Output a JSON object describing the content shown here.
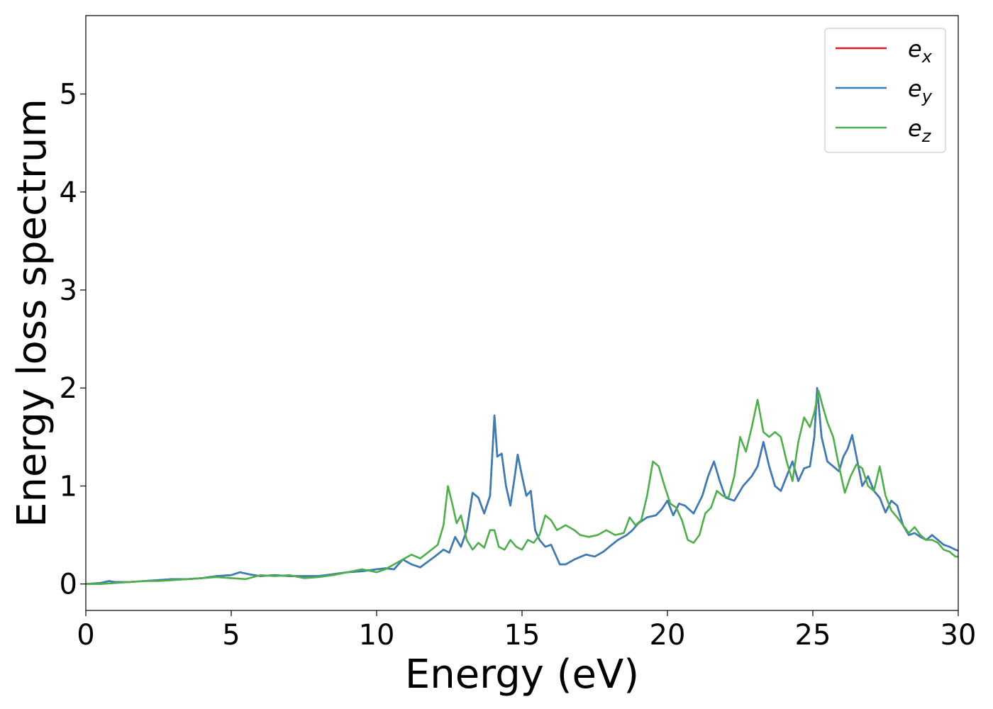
{
  "chart_data": {
    "type": "line",
    "xlabel": "Energy (eV)",
    "ylabel": "Energy loss spectrum",
    "xlim": [
      0,
      30
    ],
    "ylim": [
      -0.27,
      5.8
    ],
    "xticks": [
      0,
      5,
      10,
      15,
      20,
      25,
      30
    ],
    "xtick_labels": [
      "0",
      "5",
      "10",
      "15",
      "20",
      "25",
      "30"
    ],
    "yticks": [
      0,
      1,
      2,
      3,
      4,
      5
    ],
    "ytick_labels": [
      "0",
      "1",
      "2",
      "3",
      "4",
      "5"
    ],
    "grid": false,
    "legend_position": "top-right",
    "colors": {
      "ex": "#e41a1c",
      "ey": "#377eb8",
      "ez": "#4daf4a"
    },
    "series": [
      {
        "key": "ex",
        "name": "e",
        "subscript": "x",
        "color": "#e41a1c",
        "x": [
          0,
          0.5,
          0.8,
          1.0,
          1.5,
          2.0,
          2.5,
          3.0,
          3.5,
          4.0,
          4.5,
          5.0,
          5.3,
          5.6,
          6.0,
          6.5,
          7.0,
          7.5,
          8.0,
          8.5,
          9.0,
          9.5,
          10.0,
          10.3,
          10.6,
          10.9,
          11.2,
          11.5,
          12.0,
          12.3,
          12.5,
          12.7,
          12.9,
          13.1,
          13.3,
          13.5,
          13.7,
          13.9,
          14.05,
          14.15,
          14.3,
          14.45,
          14.6,
          14.75,
          14.85,
          15.0,
          15.15,
          15.3,
          15.45,
          15.6,
          15.8,
          16.0,
          16.3,
          16.5,
          16.8,
          17.2,
          17.5,
          17.8,
          18.0,
          18.3,
          18.6,
          18.8,
          19.0,
          19.3,
          19.6,
          19.8,
          20.0,
          20.2,
          20.4,
          20.6,
          20.9,
          21.2,
          21.4,
          21.6,
          21.8,
          22.0,
          22.3,
          22.6,
          22.9,
          23.1,
          23.3,
          23.5,
          23.7,
          23.9,
          24.1,
          24.3,
          24.5,
          24.7,
          24.9,
          25.05,
          25.15,
          25.3,
          25.5,
          25.7,
          25.9,
          26.05,
          26.2,
          26.35,
          26.5,
          26.7,
          26.9,
          27.1,
          27.3,
          27.5,
          27.7,
          27.9,
          28.1,
          28.3,
          28.5,
          28.7,
          28.9,
          29.1,
          29.3,
          29.5,
          29.7,
          29.9,
          30.0
        ],
        "y": [
          0.0,
          0.01,
          0.03,
          0.02,
          0.02,
          0.03,
          0.04,
          0.05,
          0.05,
          0.06,
          0.08,
          0.09,
          0.12,
          0.1,
          0.08,
          0.09,
          0.08,
          0.08,
          0.08,
          0.1,
          0.12,
          0.13,
          0.15,
          0.16,
          0.15,
          0.25,
          0.2,
          0.17,
          0.28,
          0.35,
          0.32,
          0.48,
          0.38,
          0.55,
          0.93,
          0.88,
          0.72,
          0.9,
          1.72,
          1.3,
          1.33,
          1.0,
          0.8,
          1.1,
          1.32,
          1.1,
          0.9,
          0.95,
          0.55,
          0.45,
          0.38,
          0.4,
          0.2,
          0.2,
          0.25,
          0.3,
          0.28,
          0.33,
          0.38,
          0.45,
          0.5,
          0.55,
          0.62,
          0.68,
          0.7,
          0.76,
          0.85,
          0.7,
          0.82,
          0.8,
          0.72,
          0.9,
          1.1,
          1.25,
          1.05,
          0.88,
          0.85,
          1.0,
          1.1,
          1.2,
          1.45,
          1.2,
          1.0,
          0.95,
          1.1,
          1.25,
          1.05,
          1.18,
          1.2,
          1.5,
          2.0,
          1.5,
          1.25,
          1.2,
          1.15,
          1.3,
          1.38,
          1.52,
          1.3,
          1.0,
          1.1,
          0.95,
          0.88,
          0.73,
          0.85,
          0.8,
          0.6,
          0.5,
          0.52,
          0.48,
          0.45,
          0.5,
          0.45,
          0.4,
          0.38,
          0.35,
          0.34
        ]
      },
      {
        "key": "ey",
        "name": "e",
        "subscript": "y",
        "color": "#377eb8",
        "x": [
          0,
          0.5,
          0.8,
          1.0,
          1.5,
          2.0,
          2.5,
          3.0,
          3.5,
          4.0,
          4.5,
          5.0,
          5.3,
          5.6,
          6.0,
          6.5,
          7.0,
          7.5,
          8.0,
          8.5,
          9.0,
          9.5,
          10.0,
          10.3,
          10.6,
          10.9,
          11.2,
          11.5,
          12.0,
          12.3,
          12.5,
          12.7,
          12.9,
          13.1,
          13.3,
          13.5,
          13.7,
          13.9,
          14.05,
          14.15,
          14.3,
          14.45,
          14.6,
          14.75,
          14.85,
          15.0,
          15.15,
          15.3,
          15.45,
          15.6,
          15.8,
          16.0,
          16.3,
          16.5,
          16.8,
          17.2,
          17.5,
          17.8,
          18.0,
          18.3,
          18.6,
          18.8,
          19.0,
          19.3,
          19.6,
          19.8,
          20.0,
          20.2,
          20.4,
          20.6,
          20.9,
          21.2,
          21.4,
          21.6,
          21.8,
          22.0,
          22.3,
          22.6,
          22.9,
          23.1,
          23.3,
          23.5,
          23.7,
          23.9,
          24.1,
          24.3,
          24.5,
          24.7,
          24.9,
          25.05,
          25.15,
          25.3,
          25.5,
          25.7,
          25.9,
          26.05,
          26.2,
          26.35,
          26.5,
          26.7,
          26.9,
          27.1,
          27.3,
          27.5,
          27.7,
          27.9,
          28.1,
          28.3,
          28.5,
          28.7,
          28.9,
          29.1,
          29.3,
          29.5,
          29.7,
          29.9,
          30.0
        ],
        "y": [
          0.0,
          0.01,
          0.03,
          0.02,
          0.02,
          0.03,
          0.04,
          0.05,
          0.05,
          0.06,
          0.08,
          0.09,
          0.12,
          0.1,
          0.08,
          0.09,
          0.08,
          0.08,
          0.08,
          0.1,
          0.12,
          0.13,
          0.15,
          0.16,
          0.15,
          0.25,
          0.2,
          0.17,
          0.28,
          0.35,
          0.32,
          0.48,
          0.38,
          0.55,
          0.93,
          0.88,
          0.72,
          0.9,
          1.72,
          1.3,
          1.33,
          1.0,
          0.8,
          1.1,
          1.32,
          1.1,
          0.9,
          0.95,
          0.55,
          0.45,
          0.38,
          0.4,
          0.2,
          0.2,
          0.25,
          0.3,
          0.28,
          0.33,
          0.38,
          0.45,
          0.5,
          0.55,
          0.62,
          0.68,
          0.7,
          0.76,
          0.85,
          0.7,
          0.82,
          0.8,
          0.72,
          0.9,
          1.1,
          1.25,
          1.05,
          0.88,
          0.85,
          1.0,
          1.1,
          1.2,
          1.45,
          1.2,
          1.0,
          0.95,
          1.1,
          1.25,
          1.05,
          1.18,
          1.2,
          1.5,
          2.0,
          1.5,
          1.25,
          1.2,
          1.15,
          1.3,
          1.38,
          1.52,
          1.3,
          1.0,
          1.1,
          0.95,
          0.88,
          0.73,
          0.85,
          0.8,
          0.6,
          0.5,
          0.52,
          0.48,
          0.45,
          0.5,
          0.45,
          0.4,
          0.38,
          0.35,
          0.34
        ]
      },
      {
        "key": "ez",
        "name": "e",
        "subscript": "z",
        "color": "#4daf4a",
        "x": [
          0,
          0.5,
          1.0,
          1.5,
          2.0,
          2.5,
          3.0,
          3.5,
          4.0,
          4.5,
          5.0,
          5.5,
          6.0,
          6.5,
          7.0,
          7.5,
          8.0,
          8.5,
          9.0,
          9.5,
          10.0,
          10.3,
          10.6,
          10.9,
          11.2,
          11.5,
          11.8,
          12.1,
          12.3,
          12.45,
          12.6,
          12.75,
          12.9,
          13.1,
          13.3,
          13.5,
          13.7,
          13.9,
          14.05,
          14.2,
          14.4,
          14.6,
          14.8,
          15.0,
          15.2,
          15.4,
          15.6,
          15.8,
          16.0,
          16.2,
          16.5,
          16.8,
          17.0,
          17.3,
          17.6,
          17.9,
          18.2,
          18.5,
          18.7,
          18.9,
          19.1,
          19.3,
          19.5,
          19.7,
          19.9,
          20.1,
          20.3,
          20.5,
          20.7,
          20.9,
          21.1,
          21.3,
          21.5,
          21.7,
          21.9,
          22.1,
          22.3,
          22.5,
          22.7,
          22.9,
          23.1,
          23.3,
          23.5,
          23.7,
          23.9,
          24.1,
          24.3,
          24.5,
          24.7,
          24.9,
          25.05,
          25.2,
          25.35,
          25.5,
          25.7,
          25.9,
          26.1,
          26.3,
          26.5,
          26.7,
          26.9,
          27.1,
          27.3,
          27.5,
          27.7,
          27.9,
          28.1,
          28.3,
          28.5,
          28.7,
          28.9,
          29.1,
          29.3,
          29.5,
          29.7,
          29.9,
          30.0
        ],
        "y": [
          0.0,
          0.0,
          0.01,
          0.02,
          0.03,
          0.03,
          0.04,
          0.05,
          0.06,
          0.07,
          0.06,
          0.05,
          0.09,
          0.08,
          0.09,
          0.06,
          0.07,
          0.09,
          0.12,
          0.15,
          0.12,
          0.15,
          0.2,
          0.25,
          0.3,
          0.26,
          0.33,
          0.4,
          0.6,
          1.0,
          0.82,
          0.62,
          0.7,
          0.45,
          0.35,
          0.42,
          0.37,
          0.55,
          0.55,
          0.38,
          0.35,
          0.45,
          0.38,
          0.35,
          0.45,
          0.42,
          0.5,
          0.7,
          0.65,
          0.55,
          0.6,
          0.55,
          0.5,
          0.48,
          0.5,
          0.55,
          0.5,
          0.52,
          0.68,
          0.6,
          0.65,
          0.9,
          1.25,
          1.2,
          1.0,
          0.82,
          0.78,
          0.65,
          0.45,
          0.42,
          0.5,
          0.72,
          0.78,
          0.95,
          0.9,
          0.88,
          1.1,
          1.5,
          1.35,
          1.6,
          1.88,
          1.55,
          1.5,
          1.55,
          1.5,
          1.25,
          1.05,
          1.45,
          1.7,
          1.6,
          1.75,
          1.97,
          1.8,
          1.65,
          1.5,
          1.2,
          0.93,
          1.1,
          1.22,
          1.18,
          1.0,
          0.95,
          1.2,
          0.9,
          0.75,
          0.68,
          0.6,
          0.52,
          0.58,
          0.5,
          0.45,
          0.45,
          0.42,
          0.35,
          0.33,
          0.28,
          0.28
        ]
      }
    ]
  }
}
